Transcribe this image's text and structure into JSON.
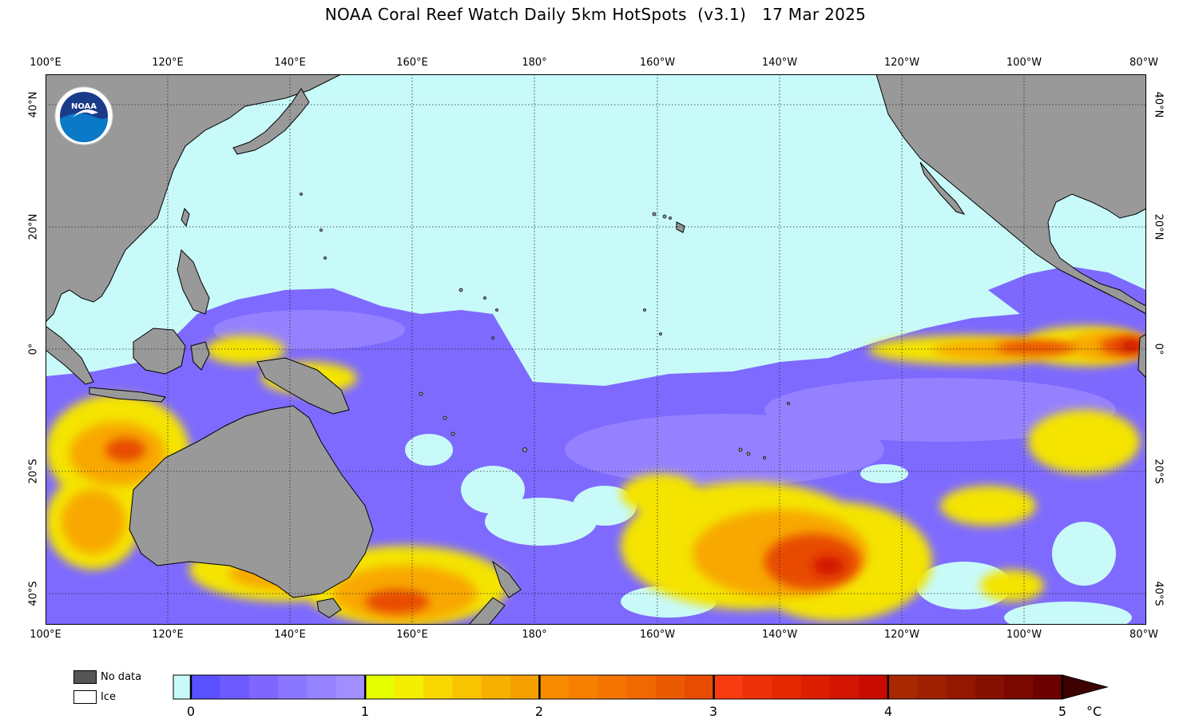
{
  "title": "NOAA Coral Reef Watch Daily 5km HotSpots  (v3.1)   17 Mar 2025",
  "longitude_labels": [
    "100°E",
    "120°E",
    "140°E",
    "160°E",
    "180°",
    "160°W",
    "140°W",
    "120°W",
    "100°W",
    "80°W"
  ],
  "latitude_labels": [
    "40°N",
    "20°N",
    "0°",
    "20°S",
    "40°S"
  ],
  "logo": {
    "text": "NOAA",
    "ring_text": "NATIONAL OCEANIC AND ATMOSPHERIC ADMINISTRATION · U.S. DEPARTMENT OF COMMERCE"
  },
  "legend": {
    "no_data": "No data",
    "ice": "Ice",
    "no_data_color": "#555555",
    "ice_color": "#ffffff"
  },
  "colorbar": {
    "ticks": [
      "0",
      "1",
      "2",
      "3",
      "4",
      "5"
    ],
    "unit": "°C",
    "min": 0,
    "max": 5,
    "below_zero_color": "#c8fafa",
    "segments": [
      {
        "from": 0,
        "to": 1,
        "colors": [
          "#5a50ff",
          "#6e5aff",
          "#7e66ff",
          "#8b76ff",
          "#9683ff",
          "#a18eff"
        ]
      },
      {
        "from": 1,
        "to": 2,
        "colors": [
          "#e6ff00",
          "#f4ee00",
          "#f8d800",
          "#f8c400",
          "#f8b000",
          "#f6a000"
        ]
      },
      {
        "from": 2,
        "to": 3,
        "colors": [
          "#f88c00",
          "#f88000",
          "#f47400",
          "#f06800",
          "#ec5a00",
          "#e84c00"
        ]
      },
      {
        "from": 3,
        "to": 4,
        "colors": [
          "#f83c10",
          "#ee3008",
          "#e42800",
          "#dc1e00",
          "#d21400",
          "#c80a00"
        ]
      },
      {
        "from": 4,
        "to": 5,
        "colors": [
          "#a82800",
          "#9e2000",
          "#941800",
          "#861000",
          "#780800",
          "#6a0000"
        ]
      }
    ],
    "arrow_color": "#3e0000"
  },
  "map_colors": {
    "ocean": "#c8fafa",
    "land": "#999999"
  }
}
